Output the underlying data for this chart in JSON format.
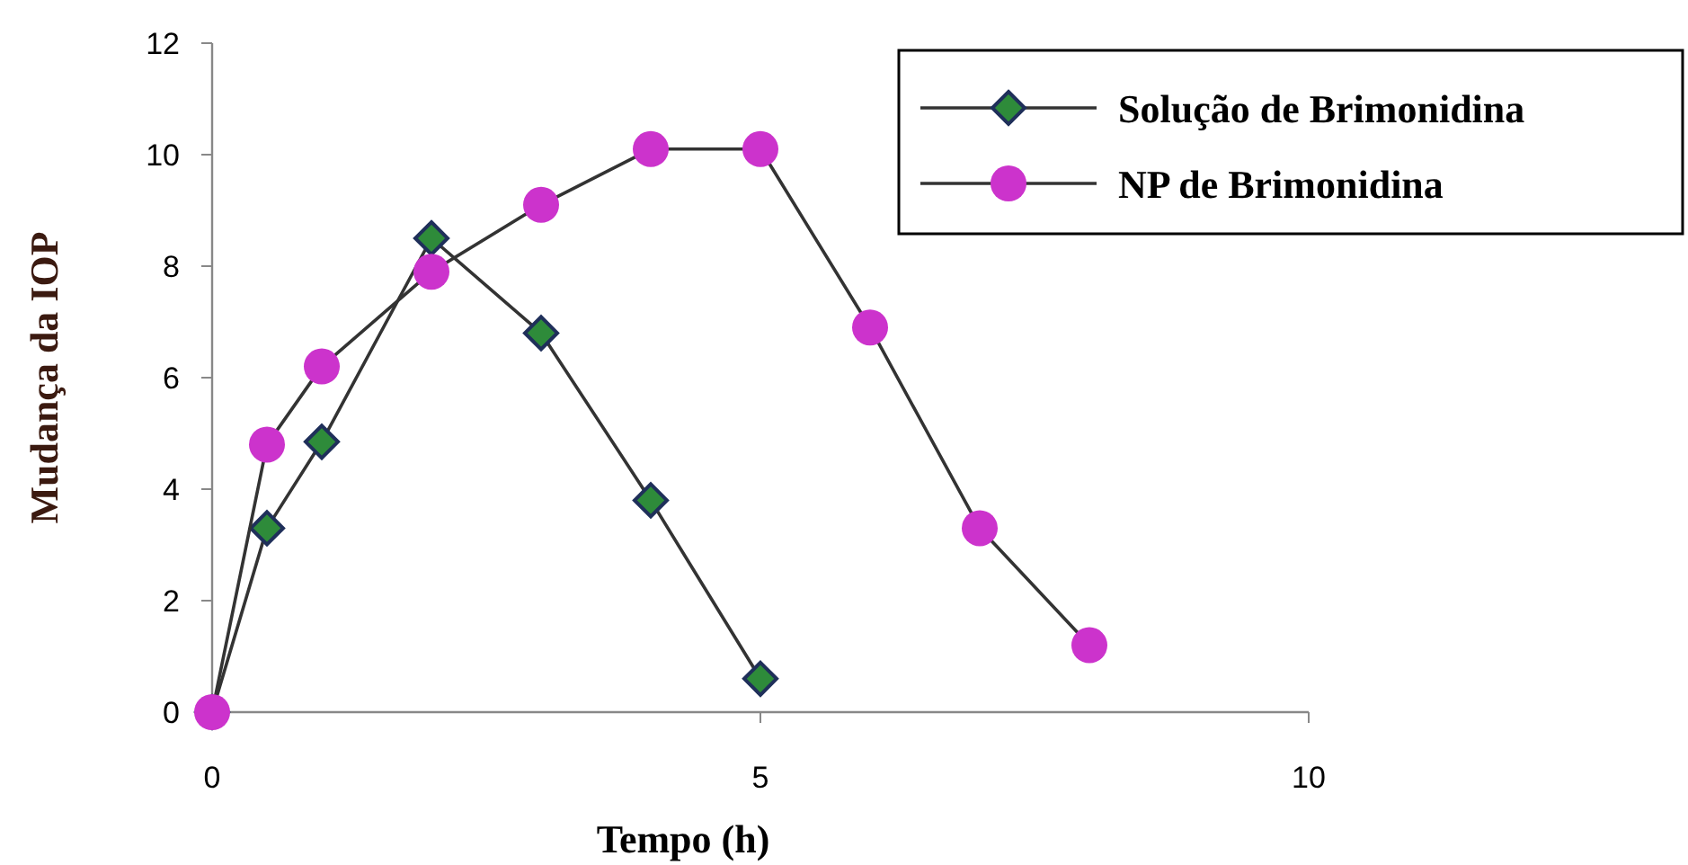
{
  "chart_data": {
    "type": "line",
    "xlabel": "Tempo (h)",
    "ylabel": "Mudança da IOP",
    "xlim": [
      0,
      10
    ],
    "xticks": [
      0,
      5,
      10
    ],
    "ylim": [
      0,
      12
    ],
    "yticks": [
      0,
      2,
      4,
      6,
      8,
      10,
      12
    ],
    "grid": false,
    "legend": "top right",
    "line_style": "solid",
    "series": [
      {
        "name": "Solução de Brimonidina",
        "color": "#2e8b3a",
        "marker": "diamond",
        "x": [
          0,
          0.5,
          1,
          2,
          3,
          4,
          5
        ],
        "values": [
          0,
          3.3,
          4.85,
          8.5,
          6.8,
          3.8,
          0.6
        ]
      },
      {
        "name": "NP de Brimonidina",
        "color": "#cc33cc",
        "marker": "circle",
        "x": [
          0,
          0.5,
          1,
          2,
          3,
          4,
          5,
          6,
          7,
          8
        ],
        "values": [
          0,
          4.8,
          6.2,
          7.9,
          9.1,
          10.1,
          10.1,
          6.9,
          3.3,
          1.2
        ]
      }
    ]
  }
}
